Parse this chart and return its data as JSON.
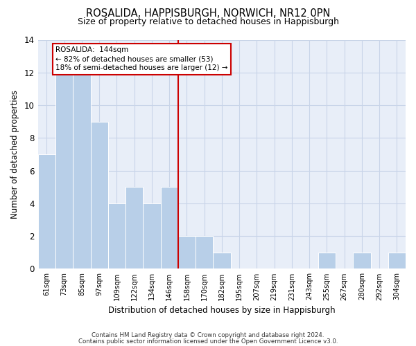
{
  "title1": "ROSALIDA, HAPPISBURGH, NORWICH, NR12 0PN",
  "title2": "Size of property relative to detached houses in Happisburgh",
  "xlabel": "Distribution of detached houses by size in Happisburgh",
  "ylabel": "Number of detached properties",
  "categories": [
    "61sqm",
    "73sqm",
    "85sqm",
    "97sqm",
    "109sqm",
    "122sqm",
    "134sqm",
    "146sqm",
    "158sqm",
    "170sqm",
    "182sqm",
    "195sqm",
    "207sqm",
    "219sqm",
    "231sqm",
    "243sqm",
    "255sqm",
    "267sqm",
    "280sqm",
    "292sqm",
    "304sqm"
  ],
  "values": [
    7,
    12,
    12,
    9,
    4,
    5,
    4,
    5,
    2,
    2,
    1,
    0,
    0,
    0,
    0,
    0,
    1,
    0,
    1,
    0,
    1
  ],
  "bar_color": "#b8cfe8",
  "grid_color": "#c8d4e8",
  "vline_color": "#cc0000",
  "vline_index": 7,
  "annotation_line1": "ROSALIDA:  144sqm",
  "annotation_line2": "← 82% of detached houses are smaller (53)",
  "annotation_line3": "18% of semi-detached houses are larger (12) →",
  "annotation_box_edge_color": "#cc0000",
  "ylim": [
    0,
    14
  ],
  "yticks": [
    0,
    2,
    4,
    6,
    8,
    10,
    12,
    14
  ],
  "footer1": "Contains HM Land Registry data © Crown copyright and database right 2024.",
  "footer2": "Contains public sector information licensed under the Open Government Licence v3.0.",
  "background_color": "#e8eef8",
  "fig_width": 6.0,
  "fig_height": 5.0,
  "dpi": 100
}
